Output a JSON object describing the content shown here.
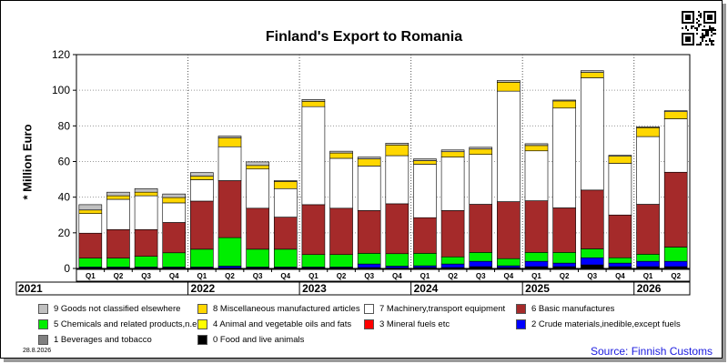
{
  "title": "Finland's Export to Romania",
  "date_stamp": "28.8.2026",
  "source": "Source: Finnish Customs",
  "chart_data": {
    "type": "bar",
    "stacked": true,
    "title": "Finland's Export to Romania",
    "ylabel": "* Million Euro",
    "xlabel": "",
    "ylim": [
      0,
      120
    ],
    "yticks": [
      0,
      20,
      40,
      60,
      80,
      100,
      120
    ],
    "grid": true,
    "legend_position": "bottom",
    "categories": [
      "Q1",
      "Q2",
      "Q3",
      "Q4",
      "Q1",
      "Q2",
      "Q3",
      "Q4",
      "Q1",
      "Q2",
      "Q3",
      "Q4",
      "Q1",
      "Q2",
      "Q3",
      "Q4",
      "Q1",
      "Q2",
      "Q3",
      "Q4",
      "Q1",
      "Q2"
    ],
    "years": [
      {
        "label": "2021",
        "quarters": 4
      },
      {
        "label": "2022",
        "quarters": 4
      },
      {
        "label": "2023",
        "quarters": 4
      },
      {
        "label": "2024",
        "quarters": 4
      },
      {
        "label": "2025",
        "quarters": 4
      },
      {
        "label": "2026",
        "quarters": 2
      }
    ],
    "series": [
      {
        "name": "0 Food and live animals",
        "color": "#000000",
        "values": [
          0.3,
          0.3,
          0.3,
          0.3,
          0.3,
          0.3,
          0.3,
          0.3,
          0.3,
          0.3,
          0.5,
          0.3,
          0.5,
          0.5,
          1,
          0.5,
          1,
          1,
          2,
          1,
          1,
          1
        ]
      },
      {
        "name": "1 Beverages and tobacco",
        "color": "#808080",
        "values": [
          0,
          0,
          0,
          0,
          0,
          0,
          0,
          0,
          0,
          0,
          0,
          0,
          0,
          0,
          0,
          0,
          0,
          0,
          0,
          0,
          0,
          0
        ]
      },
      {
        "name": "2 Crude materials,inedible,except fuels",
        "color": "#0000ff",
        "values": [
          0.5,
          0.5,
          0.5,
          0.5,
          0.5,
          1,
          0.5,
          0.5,
          0.5,
          0.5,
          2,
          1,
          1,
          2,
          3,
          1,
          3,
          2,
          4,
          2,
          3,
          3
        ]
      },
      {
        "name": "3 Mineral fuels etc",
        "color": "#ff0000",
        "values": [
          0,
          0,
          0,
          0,
          0,
          0,
          0,
          0,
          0,
          0,
          0,
          0,
          0,
          0,
          0,
          0,
          0,
          0,
          0,
          0,
          0,
          0
        ]
      },
      {
        "name": "5 Chemicals and related products,n.e.s.",
        "color": "#00ee00",
        "values": [
          5,
          5,
          6,
          8,
          10,
          16,
          10,
          10,
          7,
          7,
          6,
          7,
          7,
          4,
          5,
          4,
          5,
          6,
          5,
          3,
          4,
          8
        ]
      },
      {
        "name": "6 Basic manufactures",
        "color": "#a52a2a",
        "values": [
          14,
          16,
          15,
          17,
          27,
          32,
          23,
          18,
          28,
          26,
          24,
          28,
          20,
          26,
          27,
          32,
          29,
          25,
          33,
          24,
          28,
          42
        ]
      },
      {
        "name": "7 Machinery,transport equipment",
        "color": "#ffffff",
        "values": [
          11,
          17,
          19,
          11,
          12,
          19,
          22,
          16,
          55,
          28,
          25,
          27,
          30,
          30,
          28,
          62,
          28,
          56,
          63,
          29,
          38,
          30
        ]
      },
      {
        "name": "4 Animal and vegetable oils and fats",
        "color": "#ffff00",
        "values": [
          0,
          0,
          0,
          0,
          0,
          0,
          0,
          0,
          0,
          0,
          0,
          0,
          0,
          0,
          0,
          0,
          0,
          0,
          0,
          0,
          0,
          0
        ]
      },
      {
        "name": "8 Miscellaneous manufactured articles",
        "color": "#ffd700",
        "values": [
          2,
          2,
          2,
          3,
          2,
          5,
          2,
          4,
          3,
          3,
          4,
          6,
          2,
          3,
          3,
          5,
          3,
          4,
          3,
          4,
          5,
          4
        ]
      },
      {
        "name": "9 Goods not classified elsewhere",
        "color": "#c0c0c0",
        "values": [
          3,
          2,
          2,
          2,
          2,
          1,
          2,
          0.5,
          1,
          1,
          1,
          1,
          1,
          1,
          1,
          1,
          1,
          0.5,
          1,
          0.5,
          0.5,
          0.5
        ]
      }
    ]
  },
  "legend": [
    {
      "label": "9 Goods not classified elsewhere",
      "color": "#c0c0c0"
    },
    {
      "label": "8 Miscellaneous manufactured articles",
      "color": "#ffd700"
    },
    {
      "label": "7 Machinery,transport equipment",
      "color": "#ffffff"
    },
    {
      "label": "6 Basic manufactures",
      "color": "#a52a2a"
    },
    {
      "label": "5 Chemicals and related products,n.e.s.",
      "color": "#00ee00"
    },
    {
      "label": "4 Animal and vegetable oils and fats",
      "color": "#ffff00"
    },
    {
      "label": "3 Mineral fuels etc",
      "color": "#ff0000"
    },
    {
      "label": "2 Crude materials,inedible,except fuels",
      "color": "#0000ff"
    },
    {
      "label": "1 Beverages and tobacco",
      "color": "#808080"
    },
    {
      "label": "0 Food and live animals",
      "color": "#000000"
    }
  ]
}
